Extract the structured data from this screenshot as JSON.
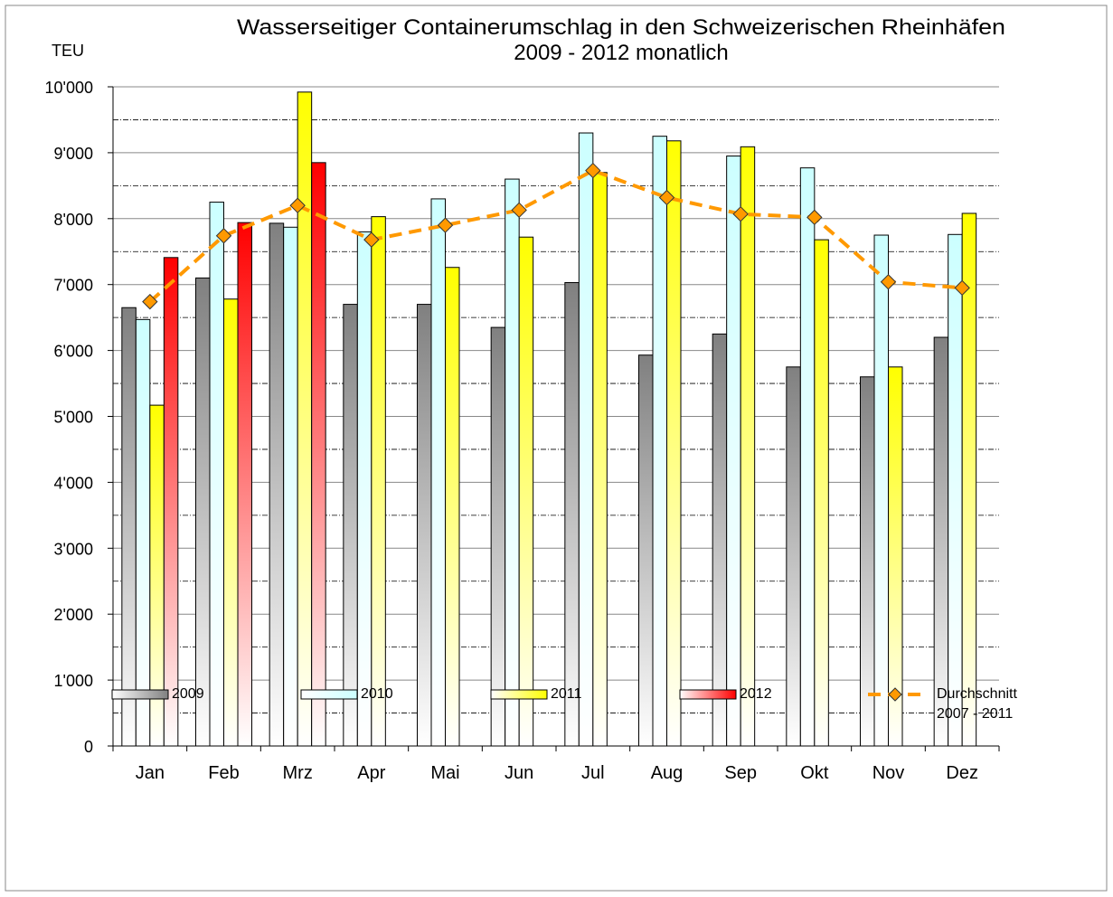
{
  "chart_data": {
    "type": "bar",
    "title": "Wasserseitiger Containerumschlag in den Schweizerischen Rheinhäfen",
    "subtitle": "2009  - 2012 monatlich",
    "y_label": "TEU",
    "categories": [
      "Jan",
      "Feb",
      "Mrz",
      "Apr",
      "Mai",
      "Jun",
      "Jul",
      "Aug",
      "Sep",
      "Okt",
      "Nov",
      "Dez"
    ],
    "series": [
      {
        "name": "2009",
        "type": "bar",
        "color": "#808080",
        "values": [
          6650,
          7100,
          7930,
          6700,
          6700,
          6350,
          7030,
          5930,
          6250,
          5750,
          5600,
          6200
        ]
      },
      {
        "name": "2010",
        "type": "bar",
        "color": "#ccffff",
        "values": [
          6470,
          8250,
          7870,
          7800,
          8300,
          8600,
          9300,
          9250,
          8950,
          8770,
          7750,
          7760
        ]
      },
      {
        "name": "2011",
        "type": "bar",
        "color": "#ffff00",
        "values": [
          5170,
          6780,
          9920,
          8030,
          7260,
          7720,
          8700,
          9180,
          9090,
          7680,
          5750,
          8080
        ]
      },
      {
        "name": "2012",
        "type": "bar",
        "color": "#ff0000",
        "values": [
          7410,
          7940,
          8850,
          null,
          null,
          null,
          null,
          null,
          null,
          null,
          null,
          null
        ]
      },
      {
        "name": "Durchschnitt\n2007 - 2011",
        "type": "line",
        "color": "#ff9900",
        "values": [
          6740,
          7740,
          8200,
          7680,
          7900,
          8130,
          8730,
          8320,
          8070,
          8020,
          7040,
          6950
        ]
      }
    ],
    "ylim": [
      0,
      10000
    ],
    "yticks": [
      0,
      {
        "value": 1000,
        "label": "1'000"
      },
      {
        "value": 2000,
        "label": "2'000"
      },
      {
        "value": 3000,
        "label": "3'000"
      },
      {
        "value": 4000,
        "label": "4'000"
      },
      {
        "value": 5000,
        "label": "5'000"
      },
      {
        "value": 6000,
        "label": "6'000"
      },
      {
        "value": 7000,
        "label": "7'000"
      },
      {
        "value": 8000,
        "label": "8'000"
      },
      {
        "value": 9000,
        "label": "9'000"
      },
      {
        "value": 10000,
        "label": "10'000"
      }
    ],
    "grid": true,
    "legend": "bottom"
  }
}
